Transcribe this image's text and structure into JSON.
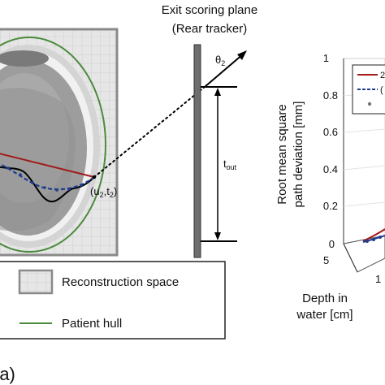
{
  "scoring_plane": {
    "title_line1": "Exit scoring plane",
    "title_line2": "(Rear tracker)",
    "angle_label": "θ",
    "angle_sub": "2",
    "offset_label": "t",
    "offset_sub": "out"
  },
  "exit_point": {
    "label_open": "(u",
    "label_u_sub": "2",
    "label_sep": ",t",
    "label_t_sub": "2",
    "label_close": ")"
  },
  "legend": {
    "reconstruction_space": "Reconstruction space",
    "patient_hull": "Patient hull"
  },
  "panel_label": "(a)",
  "plot3d": {
    "z_axis_label_line1": "Root mean square",
    "z_axis_label_line2": "path deviation [mm]",
    "z_ticks": [
      "1",
      "0.8",
      "0.6",
      "0.4",
      "0.2",
      "0"
    ],
    "depth_axis_label_line1": "Depth in",
    "depth_axis_label_line2": "water [cm]",
    "depth_ticks": [
      "5",
      "1"
    ],
    "legend_fragments": [
      "2",
      "("
    ]
  },
  "colors": {
    "grid_bg": "#e6e6e6",
    "grid_line": "#c8c8c8",
    "frame": "#8a8a8a",
    "hull": "#4a8a3c",
    "straight_path": "#a01b1b",
    "mlp_path": "#1f3d8f",
    "true_path": "#000000",
    "plane": "#6e6e6e"
  }
}
